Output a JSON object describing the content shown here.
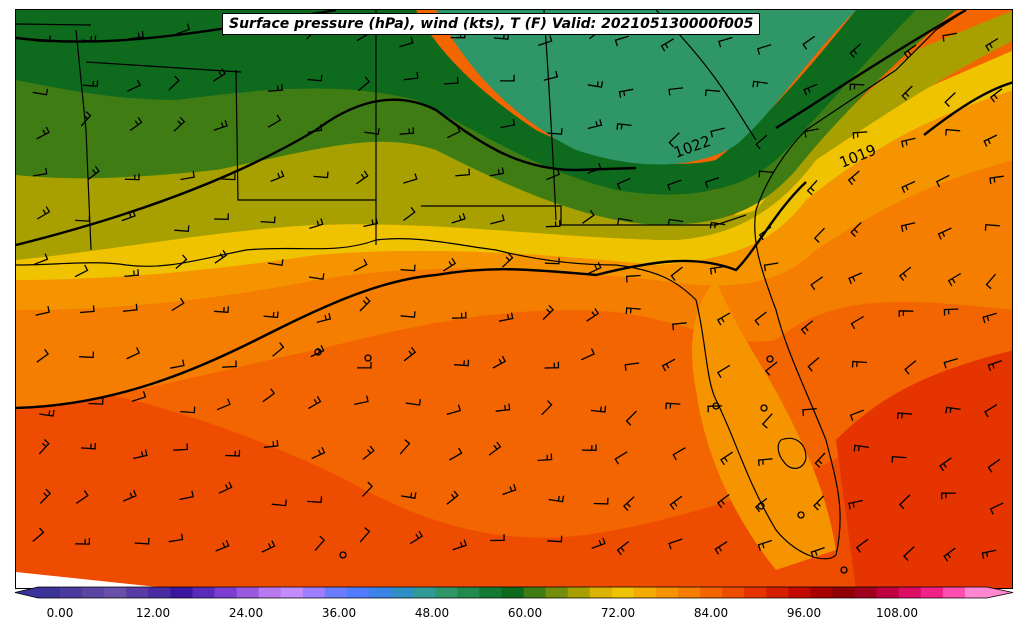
{
  "title": "Surface pressure (hPa), wind (kts), T (F) Valid: 202105130000f005",
  "isobar_labels": [
    "1022",
    "1019"
  ],
  "colorbar": {
    "ticks": [
      "0.00",
      "12.00",
      "24.00",
      "36.00",
      "48.00",
      "60.00",
      "72.00",
      "84.00",
      "96.00",
      "108.00"
    ],
    "colors": [
      "#3a3399",
      "#4b3b9e",
      "#5a45a3",
      "#6a4fa8",
      "#583aa5",
      "#4a2aa2",
      "#3b17a0",
      "#5a2bb9",
      "#7a3ed0",
      "#9a57e0",
      "#b878f0",
      "#c28cff",
      "#9d7fff",
      "#6b7dff",
      "#4f7cff",
      "#3a84e8",
      "#2f8fc4",
      "#2f9b98",
      "#2f9767",
      "#218a4c",
      "#147a33",
      "#0e6a1d",
      "#3f7d14",
      "#738d0c",
      "#a7a000",
      "#d9b300",
      "#f0c300",
      "#f4ab00",
      "#f69400",
      "#f57d00",
      "#f26500",
      "#ee4c00",
      "#e53400",
      "#d51d00",
      "#c20b00",
      "#a80000",
      "#8f0005",
      "#a0001e",
      "#c00041",
      "#dd0c65",
      "#f2218a",
      "#ff4db0",
      "#ff86d0"
    ]
  }
}
